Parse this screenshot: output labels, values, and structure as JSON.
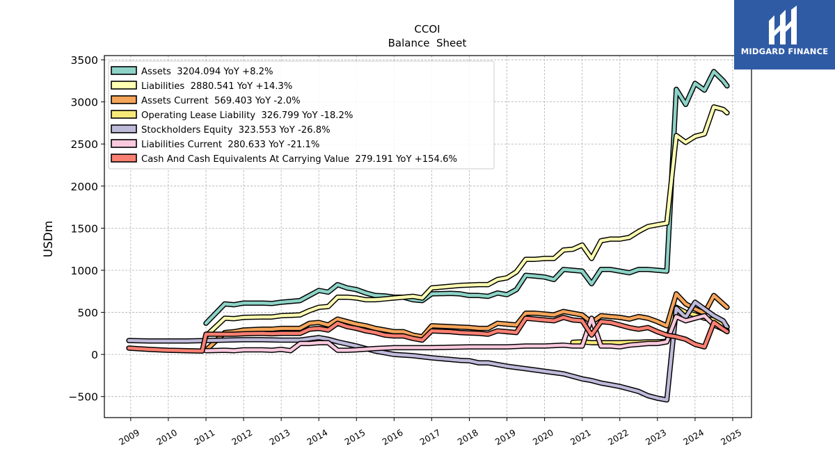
{
  "chart_data": {
    "type": "line",
    "title": "CCOI",
    "subtitle": "Balance  Sheet",
    "ylabel": "USDm",
    "xlabel": "",
    "xlim": [
      2008.3,
      2025.5
    ],
    "ylim": [
      -750,
      3550
    ],
    "yticks": [
      -500,
      0,
      500,
      1000,
      1500,
      2000,
      2500,
      3000,
      3500
    ],
    "yticklabels": [
      "−500",
      "0",
      "500",
      "1000",
      "1500",
      "2000",
      "2500",
      "3000",
      "3500"
    ],
    "xticks": [
      2009,
      2010,
      2011,
      2012,
      2013,
      2014,
      2015,
      2016,
      2017,
      2018,
      2019,
      2020,
      2021,
      2022,
      2023,
      2024,
      2025
    ],
    "xticklabels": [
      "2009",
      "2010",
      "2011",
      "2012",
      "2013",
      "2014",
      "2015",
      "2016",
      "2017",
      "2018",
      "2019",
      "2020",
      "2021",
      "2022",
      "2023",
      "2024",
      "2025"
    ],
    "grid": true,
    "legend_position": "top-left",
    "series": [
      {
        "name": "Assets",
        "legend": "Assets  3204.094 YoY +8.2%",
        "color": "#8dd3c7",
        "x": [
          2011.0,
          2011.5,
          2011.75,
          2012.0,
          2012.5,
          2012.75,
          2013.0,
          2013.5,
          2013.75,
          2014.0,
          2014.25,
          2014.5,
          2014.75,
          2015.0,
          2015.25,
          2015.5,
          2015.75,
          2016.0,
          2016.25,
          2016.5,
          2016.75,
          2017.0,
          2017.5,
          2017.75,
          2018.0,
          2018.25,
          2018.5,
          2018.75,
          2019.0,
          2019.25,
          2019.5,
          2019.75,
          2020.0,
          2020.25,
          2020.5,
          2020.75,
          2021.0,
          2021.25,
          2021.5,
          2021.75,
          2022.0,
          2022.25,
          2022.5,
          2022.75,
          2023.0,
          2023.25,
          2023.5,
          2023.75,
          2024.0,
          2024.25,
          2024.5,
          2024.75,
          2024.85
        ],
        "y": [
          370,
          600,
          590,
          610,
          610,
          605,
          620,
          640,
          700,
          760,
          740,
          830,
          790,
          770,
          730,
          700,
          695,
          680,
          680,
          650,
          640,
          720,
          725,
          720,
          700,
          700,
          690,
          730,
          710,
          770,
          940,
          930,
          920,
          890,
          1010,
          1000,
          990,
          840,
          1010,
          1010,
          990,
          970,
          1010,
          1010,
          1000,
          990,
          3150,
          2970,
          3220,
          3140,
          3360,
          3250,
          3190
        ]
      },
      {
        "name": "Liabilities",
        "legend": "Liabilities  2880.541 YoY +14.3%",
        "color": "#ffffb3",
        "x": [
          2011.0,
          2011.5,
          2011.75,
          2012.0,
          2012.5,
          2012.75,
          2013.0,
          2013.5,
          2013.75,
          2014.0,
          2014.25,
          2014.5,
          2014.75,
          2015.0,
          2015.25,
          2015.5,
          2015.75,
          2016.0,
          2016.25,
          2016.5,
          2016.75,
          2017.0,
          2017.5,
          2017.75,
          2018.0,
          2018.25,
          2018.5,
          2018.75,
          2019.0,
          2019.25,
          2019.5,
          2019.75,
          2020.0,
          2020.25,
          2020.5,
          2020.75,
          2021.0,
          2021.25,
          2021.5,
          2021.75,
          2022.0,
          2022.25,
          2022.5,
          2022.75,
          2023.0,
          2023.25,
          2023.5,
          2023.75,
          2024.0,
          2024.25,
          2024.5,
          2024.75,
          2024.85
        ],
        "y": [
          220,
          430,
          425,
          440,
          445,
          445,
          460,
          470,
          520,
          560,
          570,
          680,
          680,
          670,
          650,
          650,
          660,
          670,
          680,
          690,
          670,
          790,
          810,
          820,
          825,
          830,
          830,
          890,
          910,
          980,
          1130,
          1130,
          1140,
          1140,
          1240,
          1250,
          1300,
          1140,
          1350,
          1370,
          1370,
          1390,
          1460,
          1520,
          1540,
          1560,
          2600,
          2520,
          2590,
          2620,
          2940,
          2910,
          2870
        ]
      },
      {
        "name": "Assets Current",
        "legend": "Assets Current  569.403 YoY -2.0%",
        "color": "#f5a55a",
        "x": [
          2011.0,
          2011.5,
          2011.75,
          2012.0,
          2012.5,
          2012.75,
          2013.0,
          2013.5,
          2013.75,
          2014.0,
          2014.25,
          2014.5,
          2014.75,
          2015.0,
          2015.25,
          2015.5,
          2015.75,
          2016.0,
          2016.25,
          2016.5,
          2016.75,
          2017.0,
          2017.5,
          2017.75,
          2018.0,
          2018.25,
          2018.5,
          2018.75,
          2019.0,
          2019.25,
          2019.5,
          2019.75,
          2020.0,
          2020.25,
          2020.5,
          2020.75,
          2021.0,
          2021.25,
          2021.5,
          2021.75,
          2022.0,
          2022.25,
          2022.5,
          2022.75,
          2023.0,
          2023.25,
          2023.5,
          2023.75,
          2024.0,
          2024.25,
          2024.5,
          2024.75,
          2024.85
        ],
        "y": [
          50,
          260,
          270,
          290,
          300,
          300,
          310,
          310,
          370,
          380,
          350,
          420,
          390,
          360,
          340,
          310,
          290,
          270,
          270,
          230,
          210,
          340,
          330,
          325,
          320,
          310,
          310,
          370,
          360,
          350,
          490,
          490,
          480,
          470,
          510,
          490,
          470,
          380,
          460,
          450,
          440,
          420,
          450,
          430,
          390,
          340,
          720,
          600,
          540,
          490,
          700,
          600,
          560
        ]
      },
      {
        "name": "Operating Lease Liability",
        "legend": "Operating Lease Liability  326.799 YoY -18.2%",
        "color": "#f7e87a",
        "x": [
          2020.75,
          2021.0,
          2021.25,
          2021.5,
          2021.75,
          2022.0,
          2022.25,
          2022.5,
          2022.75,
          2023.0,
          2023.25,
          2023.5,
          2023.75,
          2024.0,
          2024.25,
          2024.5,
          2024.75,
          2024.85
        ],
        "y": [
          145,
          150,
          140,
          140,
          140,
          140,
          145,
          145,
          150,
          150,
          155,
          560,
          500,
          470,
          430,
          410,
          360,
          330
        ]
      },
      {
        "name": "Stockholders Equity",
        "legend": "Stockholders Equity  323.553 YoY -26.8%",
        "color": "#bebada",
        "x": [
          2008.95,
          2009.5,
          2010.0,
          2010.5,
          2011.0,
          2011.5,
          2012.0,
          2012.5,
          2013.0,
          2013.5,
          2014.0,
          2014.25,
          2014.5,
          2015.0,
          2015.5,
          2016.0,
          2016.5,
          2017.0,
          2017.5,
          2017.75,
          2018.0,
          2018.25,
          2018.5,
          2018.75,
          2019.0,
          2019.5,
          2020.0,
          2020.5,
          2020.75,
          2021.0,
          2021.25,
          2021.5,
          2021.75,
          2022.0,
          2022.25,
          2022.5,
          2022.75,
          2023.0,
          2023.25,
          2023.5,
          2023.75,
          2024.0,
          2024.25,
          2024.5,
          2024.75,
          2024.85
        ],
        "y": [
          165,
          160,
          160,
          160,
          165,
          170,
          175,
          175,
          170,
          170,
          200,
          180,
          150,
          100,
          40,
          0,
          -15,
          -40,
          -60,
          -70,
          -75,
          -100,
          -100,
          -120,
          -140,
          -170,
          -200,
          -230,
          -260,
          -290,
          -310,
          -340,
          -360,
          -380,
          -410,
          -440,
          -490,
          -520,
          -540,
          550,
          440,
          620,
          540,
          460,
          400,
          325
        ]
      },
      {
        "name": "Liabilities Current",
        "legend": "Liabilities Current  280.633 YoY -21.1%",
        "color": "#fbc9de",
        "x": [
          2011.0,
          2011.5,
          2011.75,
          2012.0,
          2012.5,
          2012.75,
          2013.0,
          2013.25,
          2013.5,
          2013.75,
          2014.0,
          2014.25,
          2014.5,
          2014.75,
          2015.0,
          2015.5,
          2016.0,
          2016.5,
          2017.0,
          2017.5,
          2018.0,
          2018.5,
          2019.0,
          2019.5,
          2020.0,
          2020.5,
          2020.75,
          2021.0,
          2021.25,
          2021.5,
          2021.75,
          2022.0,
          2022.25,
          2022.5,
          2022.75,
          2023.0,
          2023.25,
          2023.5,
          2023.75,
          2024.0,
          2024.25,
          2024.5,
          2024.75,
          2024.85
        ],
        "y": [
          45,
          50,
          45,
          55,
          55,
          50,
          60,
          45,
          130,
          130,
          140,
          140,
          50,
          50,
          55,
          70,
          80,
          80,
          80,
          85,
          90,
          90,
          90,
          100,
          100,
          110,
          100,
          100,
          430,
          100,
          100,
          90,
          110,
          120,
          130,
          130,
          150,
          450,
          400,
          430,
          460,
          350,
          300,
          285
        ]
      },
      {
        "name": "Cash And Cash Equivalents At Carrying Value",
        "legend": "Cash And Cash Equivalents At Carrying Value  279.191 YoY +154.6%",
        "color": "#fb8072",
        "x": [
          2008.95,
          2009.5,
          2010.0,
          2010.5,
          2010.9,
          2011.0,
          2011.5,
          2011.75,
          2012.0,
          2012.5,
          2012.75,
          2013.0,
          2013.5,
          2013.75,
          2014.0,
          2014.25,
          2014.5,
          2014.75,
          2015.0,
          2015.25,
          2015.5,
          2015.75,
          2016.0,
          2016.25,
          2016.5,
          2016.75,
          2017.0,
          2017.5,
          2017.75,
          2018.0,
          2018.25,
          2018.5,
          2018.75,
          2019.0,
          2019.25,
          2019.5,
          2019.75,
          2020.0,
          2020.25,
          2020.5,
          2020.75,
          2021.0,
          2021.25,
          2021.5,
          2021.75,
          2022.0,
          2022.25,
          2022.5,
          2022.75,
          2023.0,
          2023.25,
          2023.5,
          2023.75,
          2024.0,
          2024.25,
          2024.5,
          2024.75,
          2024.85
        ],
        "y": [
          75,
          60,
          50,
          45,
          40,
          240,
          240,
          240,
          245,
          250,
          245,
          250,
          250,
          300,
          310,
          290,
          370,
          330,
          310,
          280,
          260,
          230,
          220,
          220,
          190,
          170,
          280,
          270,
          260,
          255,
          250,
          240,
          280,
          270,
          260,
          430,
          420,
          410,
          400,
          440,
          410,
          400,
          230,
          390,
          380,
          350,
          320,
          300,
          320,
          270,
          230,
          210,
          180,
          120,
          90,
          380,
          300,
          270
        ]
      }
    ]
  },
  "logo": {
    "text": "MIDGARD FINANCE",
    "bg": "#2f5ba5"
  }
}
